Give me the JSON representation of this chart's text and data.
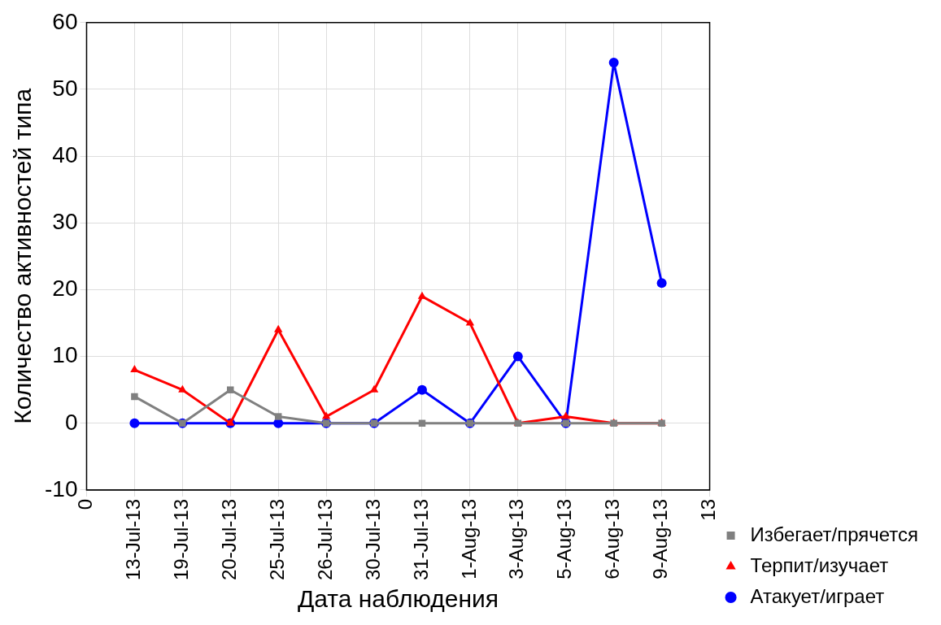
{
  "chart_data": {
    "type": "line",
    "xlabel": "Дата наблюдения",
    "ylabel": "Количество активностей типа",
    "categories": [
      "0",
      "13-Jul-13",
      "19-Jul-13",
      "20-Jul-13",
      "25-Jul-13",
      "26-Jul-13",
      "30-Jul-13",
      "31-Jul-13",
      "1-Aug-13",
      "3-Aug-13",
      "5-Aug-13",
      "6-Aug-13",
      "9-Aug-13",
      "13"
    ],
    "ylim": [
      -10,
      60
    ],
    "yticks": [
      -10,
      0,
      10,
      20,
      30,
      40,
      50,
      60
    ],
    "grid": true,
    "legend": "bottom right",
    "line_style": "solid",
    "series": [
      {
        "name": "Избегает/прячется",
        "color": "#808080",
        "marker": "square",
        "values": [
          null,
          4,
          0,
          5,
          1,
          0,
          0,
          0,
          0,
          0,
          0,
          0,
          0,
          null
        ]
      },
      {
        "name": "Терпит/изучает",
        "color": "#ff0000",
        "marker": "triangle",
        "values": [
          null,
          8,
          5,
          0,
          14,
          1,
          5,
          19,
          15,
          0,
          1,
          0,
          0,
          null
        ]
      },
      {
        "name": "Атакует/играет",
        "color": "#0000ff",
        "marker": "circle",
        "values": [
          null,
          0,
          0,
          0,
          0,
          0,
          0,
          5,
          0,
          10,
          0,
          54,
          21,
          null
        ]
      }
    ]
  }
}
